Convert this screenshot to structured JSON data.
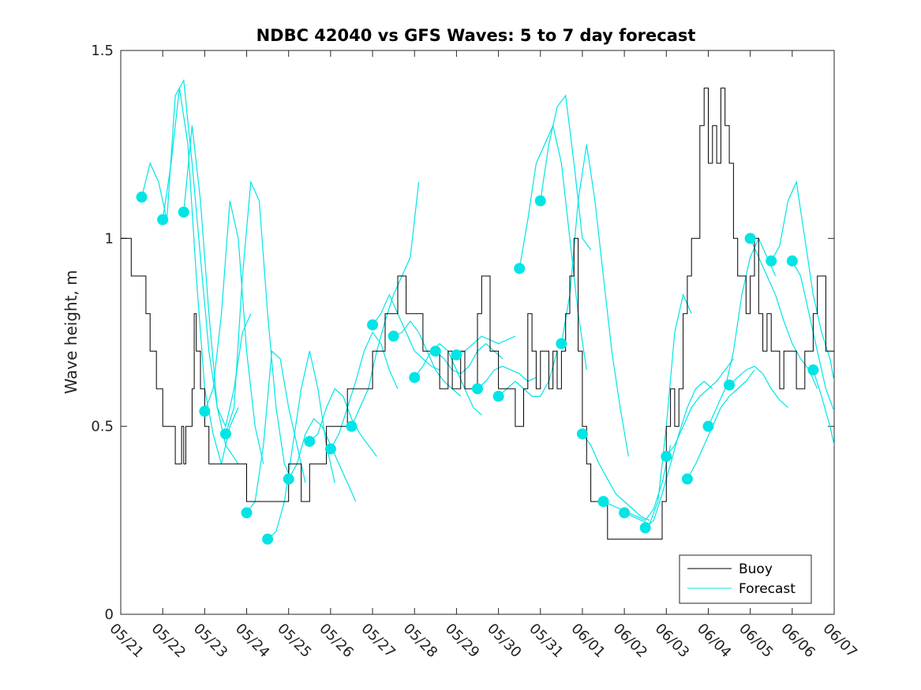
{
  "chart_data": {
    "type": "line",
    "title": "NDBC 42040 vs GFS Waves: 5 to 7 day forecast",
    "xlabel": "",
    "ylabel": "Wave height, m",
    "x_tick_labels": [
      "05/21",
      "05/22",
      "05/23",
      "05/24",
      "05/25",
      "05/26",
      "05/27",
      "05/28",
      "05/29",
      "05/30",
      "05/31",
      "06/01",
      "06/02",
      "06/03",
      "06/04",
      "06/05",
      "06/06",
      "06/07"
    ],
    "xlim": [
      0,
      17
    ],
    "ylim": [
      0,
      1.5
    ],
    "y_ticks": [
      0,
      0.5,
      1,
      1.5
    ],
    "y_tick_labels": [
      "0",
      "0.5",
      "1",
      "1.5"
    ],
    "grid": false,
    "legend_position": "bottom-right",
    "colors": {
      "buoy": "#000000",
      "forecast": "#00e5e5",
      "axis": "#262626"
    },
    "series": [
      {
        "name": "Buoy",
        "style": "step",
        "x": [
          0.0,
          0.2,
          0.25,
          0.5,
          0.6,
          0.7,
          0.75,
          0.85,
          1.0,
          1.02,
          1.1,
          1.3,
          1.45,
          1.5,
          1.55,
          1.6,
          1.7,
          1.75,
          1.8,
          1.85,
          1.9,
          2.0,
          2.1,
          2.15,
          2.2,
          2.3,
          2.4,
          2.6,
          2.7,
          2.8,
          3.0,
          3.2,
          3.5,
          3.8,
          4.0,
          4.2,
          4.3,
          4.5,
          4.8,
          4.9,
          5.0,
          5.1,
          5.2,
          5.4,
          5.6,
          5.8,
          6.0,
          6.2,
          6.3,
          6.5,
          6.6,
          6.7,
          6.8,
          6.9,
          7.0,
          7.1,
          7.2,
          7.3,
          7.5,
          7.6,
          7.7,
          7.8,
          7.9,
          8.0,
          8.1,
          8.2,
          8.3,
          8.5,
          8.6,
          8.8,
          9.0,
          9.2,
          9.4,
          9.6,
          9.7,
          9.8,
          9.9,
          10.0,
          10.1,
          10.2,
          10.3,
          10.4,
          10.5,
          10.6,
          10.7,
          10.8,
          10.9,
          11.0,
          11.1,
          11.2,
          11.3,
          11.5,
          11.6,
          11.8,
          12.0,
          12.2,
          12.4,
          12.7,
          12.8,
          12.9,
          13.0,
          13.1,
          13.2,
          13.3,
          13.4,
          13.5,
          13.6,
          13.8,
          13.9,
          14.0,
          14.1,
          14.2,
          14.3,
          14.4,
          14.5,
          14.6,
          14.7,
          14.8,
          14.9,
          15.0,
          15.1,
          15.2,
          15.3,
          15.4,
          15.5,
          15.6,
          15.7,
          15.8,
          15.9,
          16.0,
          16.1,
          16.2,
          16.3,
          16.4,
          16.5,
          16.6,
          16.8,
          17.0
        ],
        "y": [
          1.0,
          1.0,
          0.9,
          0.9,
          0.8,
          0.7,
          0.7,
          0.6,
          0.5,
          0.5,
          0.5,
          0.4,
          0.5,
          0.4,
          0.5,
          0.5,
          0.6,
          0.8,
          0.7,
          0.7,
          0.6,
          0.5,
          0.4,
          0.4,
          0.4,
          0.4,
          0.4,
          0.4,
          0.4,
          0.4,
          0.3,
          0.3,
          0.3,
          0.3,
          0.4,
          0.4,
          0.3,
          0.4,
          0.4,
          0.5,
          0.5,
          0.5,
          0.5,
          0.6,
          0.6,
          0.6,
          0.7,
          0.7,
          0.8,
          0.8,
          0.9,
          0.9,
          0.8,
          0.8,
          0.8,
          0.8,
          0.7,
          0.7,
          0.7,
          0.6,
          0.6,
          0.7,
          0.6,
          0.6,
          0.7,
          0.6,
          0.6,
          0.8,
          0.9,
          0.7,
          0.6,
          0.6,
          0.5,
          0.6,
          0.8,
          0.7,
          0.6,
          0.7,
          0.7,
          0.6,
          0.7,
          0.6,
          0.7,
          0.8,
          0.9,
          1.0,
          0.7,
          0.5,
          0.4,
          0.3,
          0.3,
          0.3,
          0.2,
          0.2,
          0.2,
          0.2,
          0.2,
          0.2,
          0.2,
          0.3,
          0.5,
          0.6,
          0.5,
          0.6,
          0.8,
          0.9,
          1.0,
          1.3,
          1.4,
          1.2,
          1.3,
          1.2,
          1.4,
          1.3,
          1.2,
          1.0,
          0.9,
          0.9,
          0.8,
          0.9,
          1.0,
          0.8,
          0.7,
          0.8,
          0.7,
          0.7,
          0.6,
          0.7,
          0.7,
          0.7,
          0.6,
          0.6,
          0.7,
          0.7,
          0.8,
          0.9,
          0.7,
          0.7
        ]
      },
      {
        "name": "Forecast",
        "style": "lines_and_markers",
        "runs": [
          {
            "x": [
              0.5,
              0.7,
              0.9,
              1.1,
              1.3,
              1.5,
              1.7,
              1.9,
              2.1,
              2.3,
              2.5,
              2.8
            ],
            "y": [
              1.11,
              1.2,
              1.15,
              1.05,
              1.38,
              1.42,
              1.2,
              0.95,
              0.7,
              0.55,
              0.45,
              0.4
            ]
          },
          {
            "x": [
              1.0,
              1.2,
              1.4,
              1.6,
              1.8,
              2.0,
              2.2,
              2.4,
              2.6,
              2.8
            ],
            "y": [
              1.05,
              1.2,
              1.4,
              1.25,
              0.9,
              0.6,
              0.48,
              0.4,
              0.5,
              0.55
            ]
          },
          {
            "x": [
              1.5,
              1.7,
              1.9,
              2.1,
              2.3,
              2.5,
              2.7,
              2.9,
              3.1
            ],
            "y": [
              1.07,
              1.3,
              1.1,
              0.8,
              0.55,
              0.5,
              0.6,
              0.75,
              0.8
            ]
          },
          {
            "x": [
              2.0,
              2.2,
              2.4,
              2.6,
              2.8,
              3.0,
              3.2,
              3.4
            ],
            "y": [
              0.54,
              0.6,
              0.8,
              1.1,
              1.0,
              0.7,
              0.5,
              0.4
            ]
          },
          {
            "x": [
              2.5,
              2.7,
              2.9,
              3.1,
              3.3,
              3.5,
              3.7,
              3.9,
              4.1
            ],
            "y": [
              0.48,
              0.55,
              0.9,
              1.15,
              1.1,
              0.8,
              0.55,
              0.4,
              0.35
            ]
          },
          {
            "x": [
              3.0,
              3.2,
              3.4,
              3.6,
              3.8,
              4.0,
              4.2,
              4.4
            ],
            "y": [
              0.27,
              0.3,
              0.45,
              0.7,
              0.68,
              0.55,
              0.45,
              0.35
            ]
          },
          {
            "x": [
              3.5,
              3.7,
              3.9,
              4.1,
              4.3,
              4.5,
              4.7,
              4.9,
              5.1
            ],
            "y": [
              0.2,
              0.22,
              0.3,
              0.45,
              0.6,
              0.7,
              0.6,
              0.45,
              0.35
            ]
          },
          {
            "x": [
              4.0,
              4.2,
              4.4,
              4.6,
              4.8,
              5.0,
              5.2,
              5.4,
              5.6
            ],
            "y": [
              0.36,
              0.4,
              0.48,
              0.52,
              0.5,
              0.45,
              0.4,
              0.35,
              0.3
            ]
          },
          {
            "x": [
              4.5,
              4.7,
              4.9,
              5.1,
              5.3,
              5.5,
              5.7,
              5.9,
              6.1
            ],
            "y": [
              0.46,
              0.48,
              0.55,
              0.6,
              0.58,
              0.52,
              0.48,
              0.45,
              0.42
            ]
          },
          {
            "x": [
              5.0,
              5.2,
              5.4,
              5.6,
              5.8,
              6.0,
              6.2,
              6.4,
              6.6
            ],
            "y": [
              0.44,
              0.48,
              0.55,
              0.62,
              0.7,
              0.75,
              0.72,
              0.65,
              0.6
            ]
          },
          {
            "x": [
              5.5,
              5.7,
              5.9,
              6.1,
              6.3,
              6.5,
              6.7,
              6.9,
              7.1
            ],
            "y": [
              0.5,
              0.55,
              0.6,
              0.7,
              0.78,
              0.85,
              0.9,
              0.95,
              1.15
            ]
          },
          {
            "x": [
              6.0,
              6.2,
              6.4,
              6.6,
              6.8,
              7.0,
              7.2,
              7.4,
              7.6
            ],
            "y": [
              0.77,
              0.8,
              0.85,
              0.8,
              0.75,
              0.7,
              0.68,
              0.66,
              0.65
            ]
          },
          {
            "x": [
              6.5,
              6.7,
              6.9,
              7.1,
              7.3,
              7.5,
              7.7,
              7.9,
              8.1
            ],
            "y": [
              0.74,
              0.75,
              0.78,
              0.75,
              0.7,
              0.65,
              0.62,
              0.6,
              0.58
            ]
          },
          {
            "x": [
              7.0,
              7.2,
              7.4,
              7.6,
              7.8,
              8.0,
              8.2,
              8.4,
              8.6
            ],
            "y": [
              0.63,
              0.66,
              0.7,
              0.72,
              0.7,
              0.65,
              0.6,
              0.55,
              0.53
            ]
          },
          {
            "x": [
              7.5,
              7.7,
              7.9,
              8.1,
              8.3,
              8.5,
              8.7,
              8.9,
              9.1
            ],
            "y": [
              0.7,
              0.68,
              0.65,
              0.64,
              0.66,
              0.7,
              0.72,
              0.7,
              0.68
            ]
          },
          {
            "x": [
              8.0,
              8.2,
              8.4,
              8.6,
              8.8,
              9.0,
              9.2,
              9.4
            ],
            "y": [
              0.69,
              0.7,
              0.72,
              0.74,
              0.73,
              0.72,
              0.73,
              0.74
            ]
          },
          {
            "x": [
              8.5,
              8.7,
              8.9,
              9.1,
              9.3,
              9.5,
              9.7,
              9.9
            ],
            "y": [
              0.6,
              0.62,
              0.65,
              0.66,
              0.65,
              0.64,
              0.62,
              0.63
            ]
          },
          {
            "x": [
              9.0,
              9.2,
              9.4,
              9.6,
              9.8,
              10.0,
              10.2,
              10.4
            ],
            "y": [
              0.58,
              0.6,
              0.62,
              0.6,
              0.58,
              0.58,
              0.62,
              0.7
            ]
          },
          {
            "x": [
              9.5,
              9.7,
              9.9,
              10.1,
              10.3,
              10.5,
              10.7,
              10.9,
              11.1
            ],
            "y": [
              0.92,
              1.05,
              1.2,
              1.25,
              1.3,
              1.2,
              1.0,
              0.8,
              0.65
            ]
          },
          {
            "x": [
              10.0,
              10.2,
              10.4,
              10.6,
              10.8,
              11.0,
              11.2
            ],
            "y": [
              1.1,
              1.25,
              1.35,
              1.38,
              1.2,
              1.0,
              0.97
            ]
          },
          {
            "x": [
              10.5,
              10.7,
              10.9,
              11.1,
              11.3,
              11.5,
              11.7,
              11.9,
              12.1
            ],
            "y": [
              0.72,
              0.85,
              1.1,
              1.25,
              1.1,
              0.9,
              0.7,
              0.55,
              0.42
            ]
          },
          {
            "x": [
              11.0,
              11.2,
              11.4,
              11.6,
              11.8,
              12.0,
              12.2,
              12.4,
              12.6
            ],
            "y": [
              0.48,
              0.45,
              0.4,
              0.36,
              0.32,
              0.3,
              0.28,
              0.26,
              0.25
            ]
          },
          {
            "x": [
              11.5,
              11.7,
              11.9,
              12.1,
              12.3,
              12.5,
              12.7,
              12.9,
              13.1
            ],
            "y": [
              0.3,
              0.29,
              0.28,
              0.27,
              0.26,
              0.25,
              0.28,
              0.35,
              0.45
            ]
          },
          {
            "x": [
              12.0,
              12.2,
              12.4,
              12.6,
              12.8,
              13.0,
              13.2,
              13.4,
              13.6
            ],
            "y": [
              0.27,
              0.26,
              0.25,
              0.24,
              0.3,
              0.5,
              0.75,
              0.85,
              0.8
            ]
          },
          {
            "x": [
              12.5,
              12.7,
              12.9,
              13.1,
              13.3,
              13.5,
              13.7,
              13.9,
              14.1
            ],
            "y": [
              0.23,
              0.25,
              0.32,
              0.4,
              0.48,
              0.55,
              0.6,
              0.62,
              0.6
            ]
          },
          {
            "x": [
              13.0,
              13.2,
              13.4,
              13.6,
              13.8,
              14.0,
              14.2,
              14.4,
              14.6
            ],
            "y": [
              0.42,
              0.45,
              0.5,
              0.55,
              0.58,
              0.6,
              0.62,
              0.65,
              0.68
            ]
          },
          {
            "x": [
              13.5,
              13.7,
              13.9,
              14.1,
              14.3,
              14.5,
              14.7,
              14.9,
              15.1
            ],
            "y": [
              0.36,
              0.4,
              0.45,
              0.5,
              0.55,
              0.58,
              0.6,
              0.62,
              0.65
            ]
          },
          {
            "x": [
              14.0,
              14.2,
              14.4,
              14.6,
              14.8,
              15.0,
              15.2,
              15.4,
              15.6
            ],
            "y": [
              0.5,
              0.55,
              0.6,
              0.7,
              0.85,
              0.95,
              1.0,
              0.95,
              0.9
            ]
          },
          {
            "x": [
              14.5,
              14.7,
              14.9,
              15.1,
              15.3,
              15.5,
              15.7,
              15.9
            ],
            "y": [
              0.61,
              0.63,
              0.65,
              0.66,
              0.64,
              0.6,
              0.57,
              0.55
            ]
          },
          {
            "x": [
              15.0,
              15.2,
              15.4,
              15.6,
              15.8,
              16.0,
              16.2,
              16.4,
              16.6
            ],
            "y": [
              1.0,
              0.95,
              0.9,
              0.85,
              0.78,
              0.72,
              0.68,
              0.65,
              0.6
            ]
          },
          {
            "x": [
              15.5,
              15.7,
              15.9,
              16.1,
              16.3,
              16.5,
              16.7,
              16.9,
              17.0
            ],
            "y": [
              0.94,
              0.98,
              1.1,
              1.15,
              1.0,
              0.85,
              0.75,
              0.68,
              0.62
            ]
          },
          {
            "x": [
              16.0,
              16.2,
              16.4,
              16.6,
              16.8,
              17.0
            ],
            "y": [
              0.94,
              0.9,
              0.8,
              0.7,
              0.6,
              0.54
            ]
          },
          {
            "x": [
              16.5,
              16.7,
              16.9,
              17.0
            ],
            "y": [
              0.65,
              0.58,
              0.5,
              0.45
            ]
          }
        ]
      }
    ]
  }
}
